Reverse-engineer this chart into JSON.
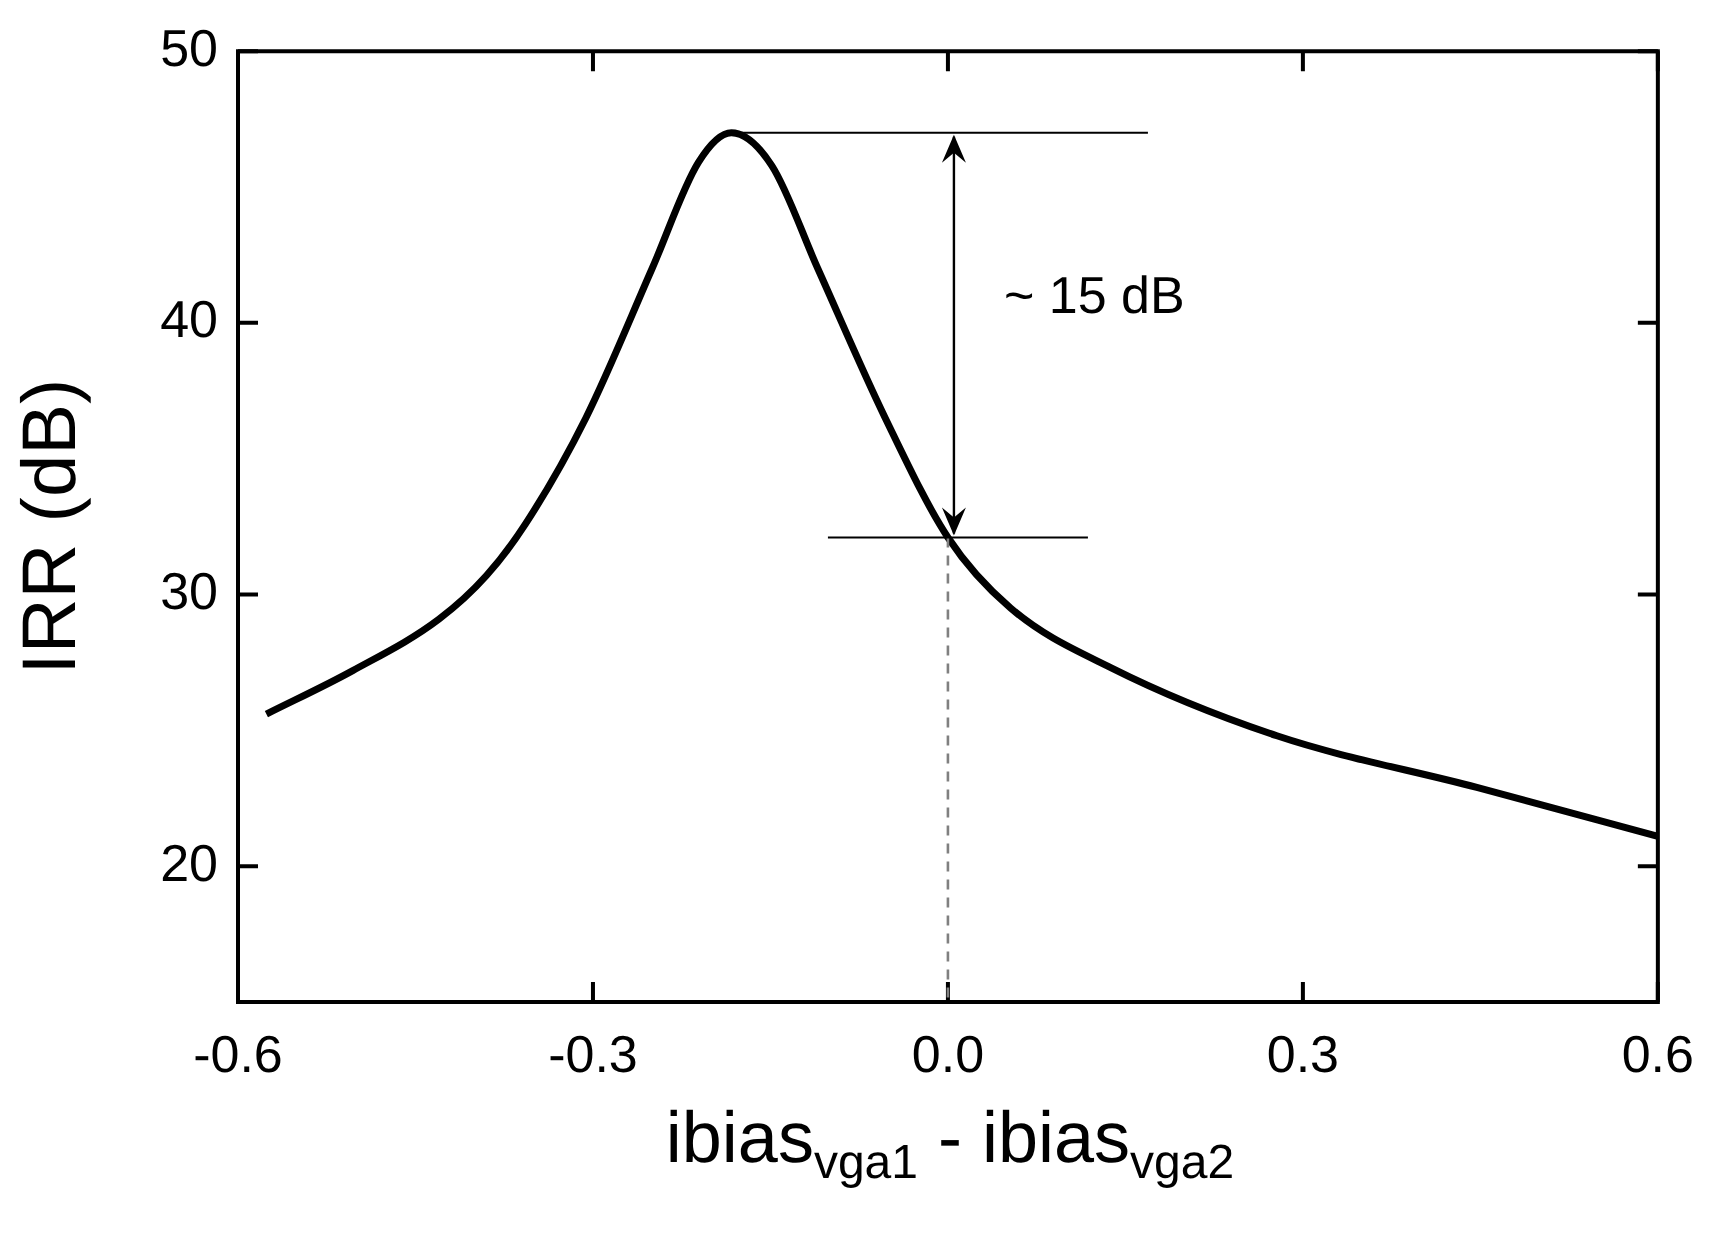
{
  "chart_data": {
    "type": "line",
    "xlabel": "ibias$_{vga1}$ - ibias$_{vga2}$",
    "ylabel": "IRR (dB)",
    "x": [
      -0.576,
      -0.503,
      -0.43,
      -0.39,
      -0.357,
      -0.306,
      -0.25,
      -0.211,
      -0.183,
      -0.149,
      -0.11,
      -0.053,
      0.0,
      0.053,
      0.138,
      0.278,
      0.447,
      0.6
    ],
    "series": [
      {
        "color": "#000000",
        "values": [
          25.6,
          27.2,
          29.1,
          30.7,
          32.6,
          36.5,
          42.0,
          45.9,
          47.0,
          45.8,
          42.0,
          36.5,
          32.1,
          29.5,
          27.3,
          24.8,
          22.9,
          21.1
        ]
      }
    ],
    "xlim": [
      -0.6,
      0.6
    ],
    "xticks": [
      -0.6,
      -0.3,
      {
        "value": 0,
        "label": "0.0"
      },
      0.3,
      0.6
    ],
    "ylim": [
      15,
      50
    ],
    "yticks": [
      20,
      30,
      40,
      50
    ],
    "ref_lines": [
      {
        "axis": "x",
        "value": 0,
        "color": "#808080",
        "line_style": "dashed"
      }
    ],
    "annotations": [
      "~ 15 dB"
    ],
    "grid": false,
    "legend": false,
    "marker": "none",
    "line_style": "solid"
  }
}
